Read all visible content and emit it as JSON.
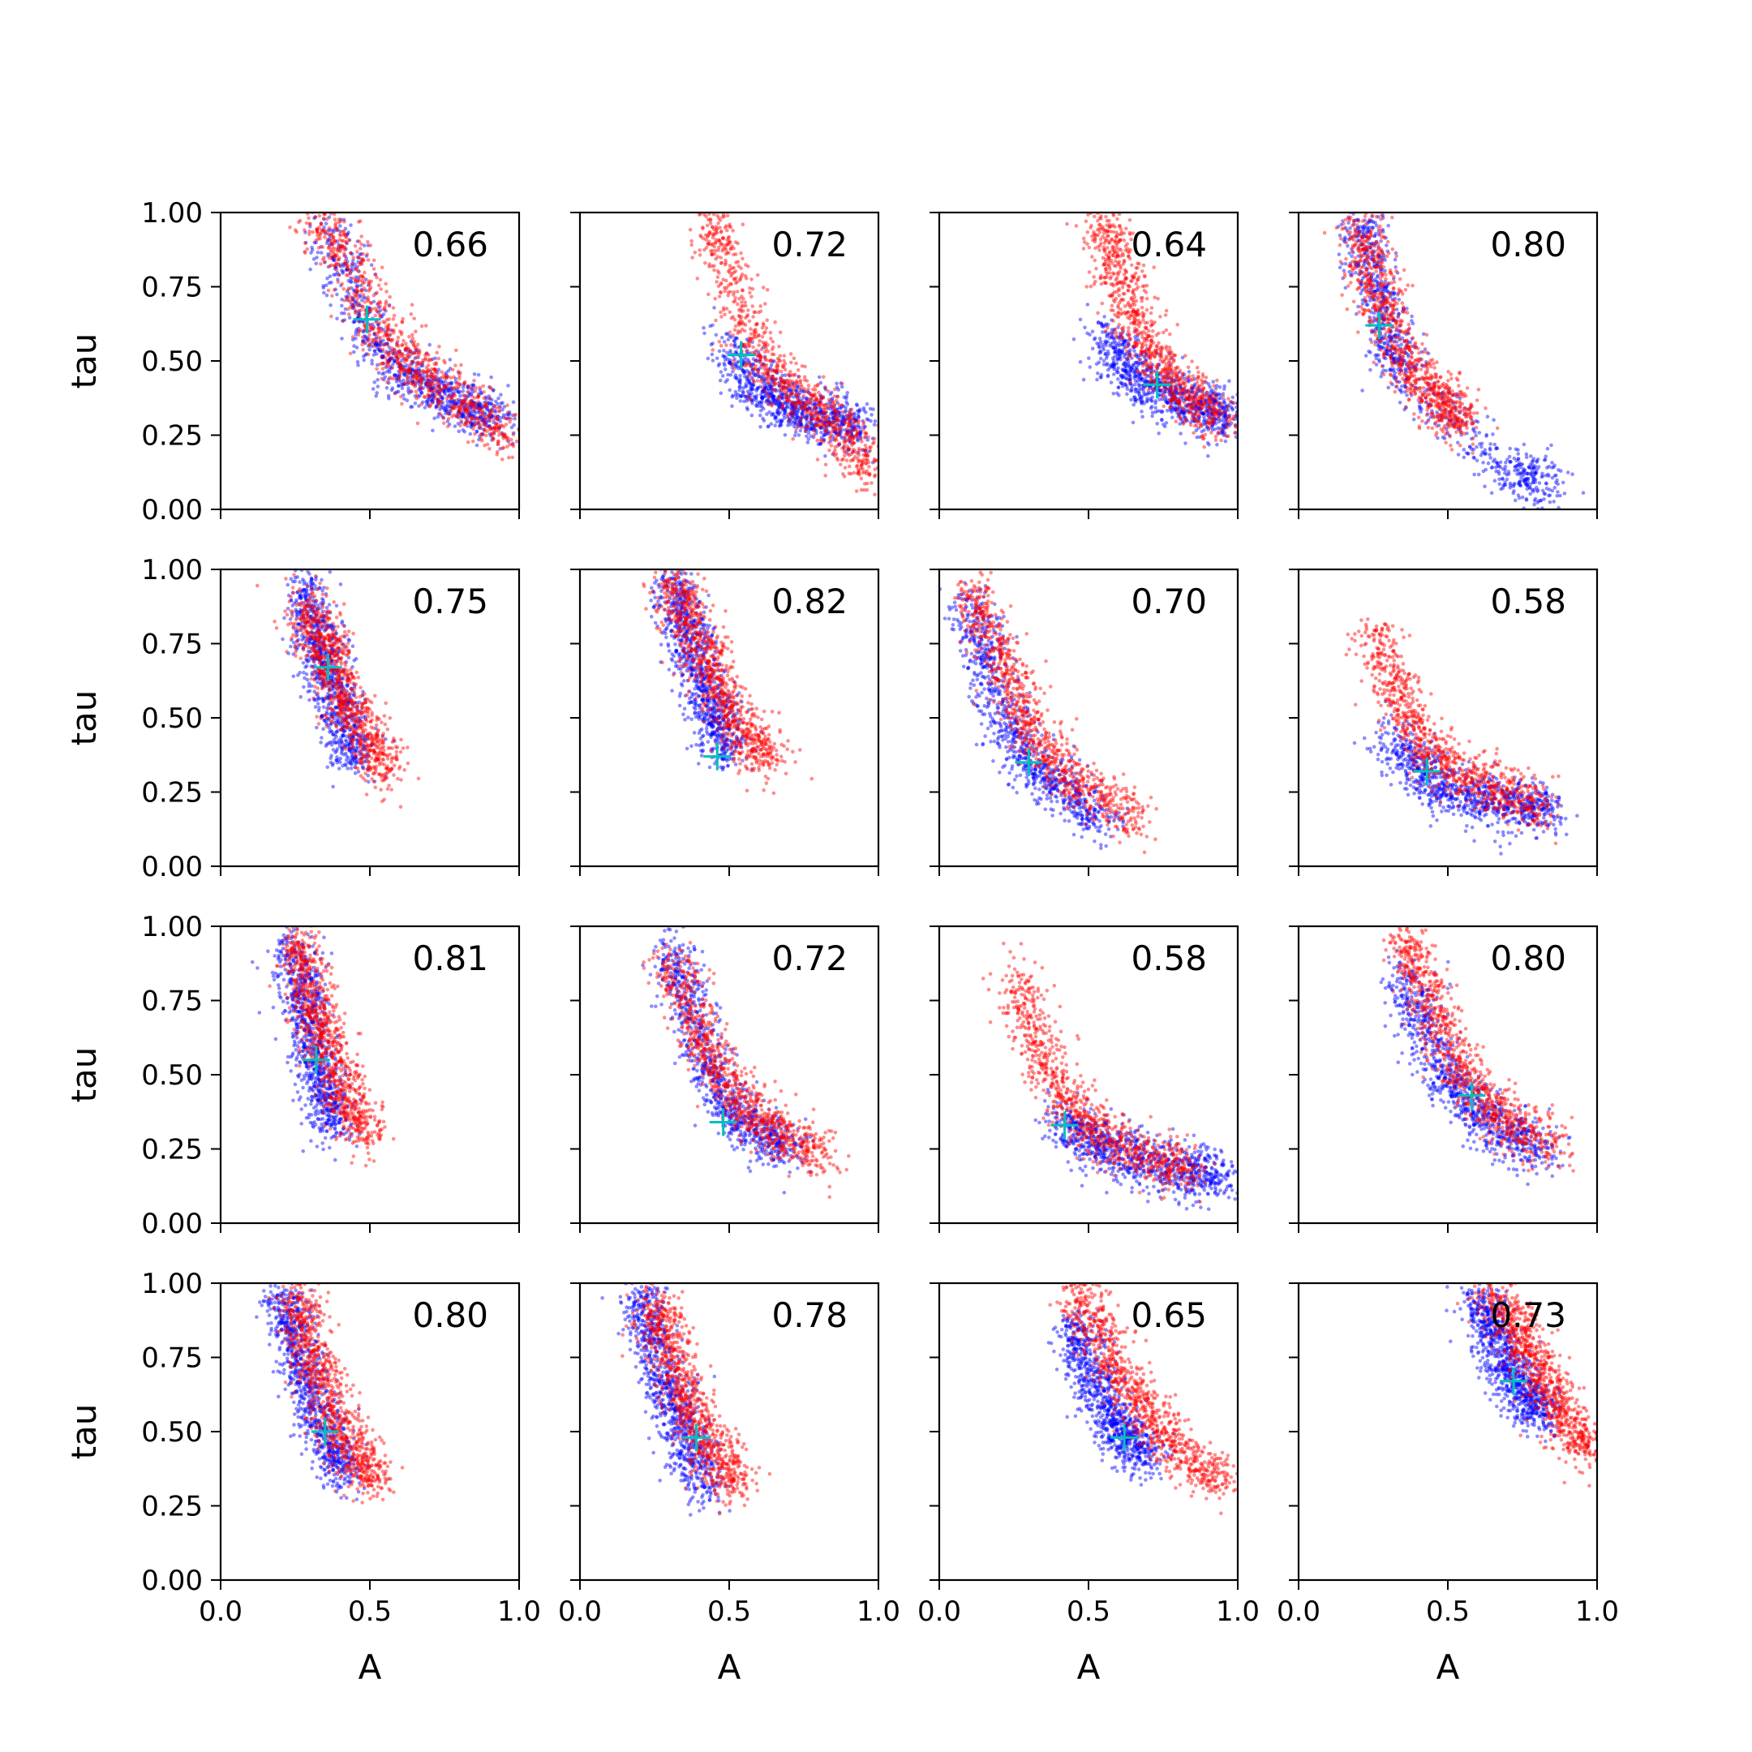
{
  "figure": {
    "xlabel": "A",
    "ylabel": "tau",
    "colors": {
      "series_a": "#0000ff",
      "series_b": "#ff0000",
      "marker": "#00bfbf",
      "axis": "#000000"
    }
  },
  "chart_data": [
    {
      "type": "scatter",
      "title": "",
      "xlabel": "",
      "ylabel": "tau",
      "xlim": [
        0,
        1
      ],
      "ylim": [
        0,
        1
      ],
      "xticks": [
        "0.0",
        "0.5",
        "1.0"
      ],
      "yticks": [
        "0.00",
        "0.25",
        "0.50",
        "0.75",
        "1.00"
      ],
      "annotation": "0.66",
      "marker": {
        "x": 0.49,
        "y": 0.64
      },
      "clouds": [
        {
          "series": "blue",
          "x": [
            0.35,
            0.45,
            0.55,
            0.65,
            0.75,
            0.85,
            0.93
          ],
          "y": [
            0.95,
            0.7,
            0.52,
            0.44,
            0.39,
            0.34,
            0.3
          ]
        },
        {
          "series": "red",
          "x": [
            0.32,
            0.42,
            0.52,
            0.62,
            0.72,
            0.85,
            0.97
          ],
          "y": [
            0.98,
            0.85,
            0.62,
            0.5,
            0.42,
            0.33,
            0.24
          ]
        }
      ]
    },
    {
      "type": "scatter",
      "title": "",
      "xlabel": "",
      "ylabel": "",
      "xlim": [
        0,
        1
      ],
      "ylim": [
        0,
        1
      ],
      "xticks": [
        "0.0",
        "0.5",
        "1.0"
      ],
      "yticks": [
        "0.00",
        "0.25",
        "0.50",
        "0.75",
        "1.00"
      ],
      "annotation": "0.72",
      "marker": {
        "x": 0.54,
        "y": 0.52
      },
      "clouds": [
        {
          "series": "blue",
          "x": [
            0.5,
            0.58,
            0.66,
            0.75,
            0.85,
            0.95
          ],
          "y": [
            0.55,
            0.42,
            0.36,
            0.33,
            0.3,
            0.27
          ]
        },
        {
          "series": "red",
          "x": [
            0.45,
            0.5,
            0.58,
            0.68,
            0.8,
            0.9,
            0.98
          ],
          "y": [
            0.98,
            0.8,
            0.55,
            0.42,
            0.34,
            0.25,
            0.12
          ]
        }
      ]
    },
    {
      "type": "scatter",
      "title": "",
      "xlabel": "",
      "ylabel": "",
      "xlim": [
        0,
        1
      ],
      "ylim": [
        0,
        1
      ],
      "xticks": [
        "0.0",
        "0.5",
        "1.0"
      ],
      "yticks": [
        "0.00",
        "0.25",
        "0.50",
        "0.75",
        "1.00"
      ],
      "annotation": "0.64",
      "marker": {
        "x": 0.73,
        "y": 0.42
      },
      "clouds": [
        {
          "series": "blue",
          "x": [
            0.55,
            0.62,
            0.7,
            0.8,
            0.9,
            0.98
          ],
          "y": [
            0.6,
            0.48,
            0.42,
            0.37,
            0.33,
            0.3
          ]
        },
        {
          "series": "red",
          "x": [
            0.55,
            0.6,
            0.66,
            0.74,
            0.84,
            0.95
          ],
          "y": [
            0.98,
            0.82,
            0.62,
            0.48,
            0.38,
            0.3
          ]
        }
      ]
    },
    {
      "type": "scatter",
      "title": "",
      "xlabel": "",
      "ylabel": "",
      "xlim": [
        0,
        1
      ],
      "ylim": [
        0,
        1
      ],
      "xticks": [
        "0.0",
        "0.5",
        "1.0"
      ],
      "yticks": [
        "0.00",
        "0.25",
        "0.50",
        "0.75",
        "1.00"
      ],
      "annotation": "0.80",
      "marker": {
        "x": 0.27,
        "y": 0.62
      },
      "clouds": [
        {
          "series": "blue",
          "x": [
            0.2,
            0.25,
            0.3,
            0.35,
            0.7,
            0.85
          ],
          "y": [
            0.98,
            0.8,
            0.6,
            0.45,
            0.12,
            0.08
          ]
        },
        {
          "series": "red",
          "x": [
            0.2,
            0.25,
            0.3,
            0.4,
            0.5,
            0.55
          ],
          "y": [
            0.95,
            0.78,
            0.6,
            0.45,
            0.35,
            0.28
          ]
        }
      ]
    },
    {
      "type": "scatter",
      "title": "",
      "xlabel": "",
      "ylabel": "tau",
      "xlim": [
        0,
        1
      ],
      "ylim": [
        0,
        1
      ],
      "xticks": [
        "0.0",
        "0.5",
        "1.0"
      ],
      "yticks": [
        "0.00",
        "0.25",
        "0.50",
        "0.75",
        "1.00"
      ],
      "annotation": "0.75",
      "marker": {
        "x": 0.36,
        "y": 0.67
      },
      "clouds": [
        {
          "series": "blue",
          "x": [
            0.28,
            0.32,
            0.36,
            0.4,
            0.46
          ],
          "y": [
            0.95,
            0.8,
            0.65,
            0.5,
            0.35
          ]
        },
        {
          "series": "red",
          "x": [
            0.28,
            0.34,
            0.4,
            0.48,
            0.56
          ],
          "y": [
            0.9,
            0.75,
            0.6,
            0.45,
            0.32
          ]
        }
      ]
    },
    {
      "type": "scatter",
      "title": "",
      "xlabel": "",
      "ylabel": "",
      "xlim": [
        0,
        1
      ],
      "ylim": [
        0,
        1
      ],
      "xticks": [
        "0.0",
        "0.5",
        "1.0"
      ],
      "yticks": [
        "0.00",
        "0.25",
        "0.50",
        "0.75",
        "1.00"
      ],
      "annotation": "0.82",
      "marker": {
        "x": 0.46,
        "y": 0.37
      },
      "clouds": [
        {
          "series": "blue",
          "x": [
            0.3,
            0.35,
            0.4,
            0.45,
            0.5
          ],
          "y": [
            0.98,
            0.82,
            0.66,
            0.5,
            0.38
          ]
        },
        {
          "series": "red",
          "x": [
            0.3,
            0.38,
            0.45,
            0.55,
            0.65
          ],
          "y": [
            0.98,
            0.8,
            0.62,
            0.45,
            0.35
          ]
        }
      ]
    },
    {
      "type": "scatter",
      "title": "",
      "xlabel": "",
      "ylabel": "",
      "xlim": [
        0,
        1
      ],
      "ylim": [
        0,
        1
      ],
      "xticks": [
        "0.0",
        "0.5",
        "1.0"
      ],
      "yticks": [
        "0.00",
        "0.25",
        "0.50",
        "0.75",
        "1.00"
      ],
      "annotation": "0.70",
      "marker": {
        "x": 0.3,
        "y": 0.35
      },
      "clouds": [
        {
          "series": "blue",
          "x": [
            0.1,
            0.15,
            0.22,
            0.3,
            0.42,
            0.55
          ],
          "y": [
            0.9,
            0.7,
            0.5,
            0.35,
            0.25,
            0.15
          ]
        },
        {
          "series": "red",
          "x": [
            0.1,
            0.18,
            0.26,
            0.36,
            0.5,
            0.68
          ],
          "y": [
            0.95,
            0.75,
            0.55,
            0.38,
            0.25,
            0.15
          ]
        }
      ]
    },
    {
      "type": "scatter",
      "title": "",
      "xlabel": "",
      "ylabel": "",
      "xlim": [
        0,
        1
      ],
      "ylim": [
        0,
        1
      ],
      "xticks": [
        "0.0",
        "0.5",
        "1.0"
      ],
      "yticks": [
        "0.00",
        "0.25",
        "0.50",
        "0.75",
        "1.00"
      ],
      "annotation": "0.58",
      "marker": {
        "x": 0.43,
        "y": 0.32
      },
      "clouds": [
        {
          "series": "blue",
          "x": [
            0.3,
            0.4,
            0.5,
            0.62,
            0.75,
            0.85
          ],
          "y": [
            0.45,
            0.32,
            0.25,
            0.22,
            0.2,
            0.18
          ]
        },
        {
          "series": "red",
          "x": [
            0.25,
            0.32,
            0.42,
            0.55,
            0.7,
            0.85
          ],
          "y": [
            0.8,
            0.6,
            0.42,
            0.3,
            0.24,
            0.2
          ]
        }
      ]
    },
    {
      "type": "scatter",
      "title": "",
      "xlabel": "",
      "ylabel": "tau",
      "xlim": [
        0,
        1
      ],
      "ylim": [
        0,
        1
      ],
      "xticks": [
        "0.0",
        "0.5",
        "1.0"
      ],
      "yticks": [
        "0.00",
        "0.25",
        "0.50",
        "0.75",
        "1.00"
      ],
      "annotation": "0.81",
      "marker": {
        "x": 0.32,
        "y": 0.55
      },
      "clouds": [
        {
          "series": "blue",
          "x": [
            0.24,
            0.27,
            0.3,
            0.34,
            0.38
          ],
          "y": [
            0.95,
            0.78,
            0.6,
            0.45,
            0.32
          ]
        },
        {
          "series": "red",
          "x": [
            0.26,
            0.3,
            0.35,
            0.42,
            0.5
          ],
          "y": [
            0.95,
            0.78,
            0.6,
            0.42,
            0.3
          ]
        }
      ]
    },
    {
      "type": "scatter",
      "title": "",
      "xlabel": "",
      "ylabel": "",
      "xlim": [
        0,
        1
      ],
      "ylim": [
        0,
        1
      ],
      "xticks": [
        "0.0",
        "0.5",
        "1.0"
      ],
      "yticks": [
        "0.00",
        "0.25",
        "0.50",
        "0.75",
        "1.00"
      ],
      "annotation": "0.72",
      "marker": {
        "x": 0.48,
        "y": 0.34
      },
      "clouds": [
        {
          "series": "blue",
          "x": [
            0.3,
            0.36,
            0.42,
            0.5,
            0.6,
            0.7
          ],
          "y": [
            0.95,
            0.75,
            0.55,
            0.38,
            0.3,
            0.25
          ]
        },
        {
          "series": "red",
          "x": [
            0.3,
            0.38,
            0.46,
            0.56,
            0.68,
            0.82
          ],
          "y": [
            0.9,
            0.7,
            0.52,
            0.38,
            0.3,
            0.22
          ]
        }
      ]
    },
    {
      "type": "scatter",
      "title": "",
      "xlabel": "",
      "ylabel": "",
      "xlim": [
        0,
        1
      ],
      "ylim": [
        0,
        1
      ],
      "xticks": [
        "0.0",
        "0.5",
        "1.0"
      ],
      "yticks": [
        "0.00",
        "0.25",
        "0.50",
        "0.75",
        "1.00"
      ],
      "annotation": "0.58",
      "marker": {
        "x": 0.42,
        "y": 0.33
      },
      "clouds": [
        {
          "series": "blue",
          "x": [
            0.4,
            0.5,
            0.6,
            0.72,
            0.85,
            0.95
          ],
          "y": [
            0.35,
            0.28,
            0.24,
            0.2,
            0.17,
            0.14
          ]
        },
        {
          "series": "red",
          "x": [
            0.25,
            0.32,
            0.42,
            0.55,
            0.7,
            0.85
          ],
          "y": [
            0.85,
            0.62,
            0.42,
            0.3,
            0.22,
            0.18
          ]
        }
      ]
    },
    {
      "type": "scatter",
      "title": "",
      "xlabel": "",
      "ylabel": "",
      "xlim": [
        0,
        1
      ],
      "ylim": [
        0,
        1
      ],
      "xticks": [
        "0.0",
        "0.5",
        "1.0"
      ],
      "yticks": [
        "0.00",
        "0.25",
        "0.50",
        "0.75",
        "1.00"
      ],
      "annotation": "0.80",
      "marker": {
        "x": 0.58,
        "y": 0.43
      },
      "clouds": [
        {
          "series": "blue",
          "x": [
            0.35,
            0.42,
            0.5,
            0.6,
            0.7,
            0.82
          ],
          "y": [
            0.85,
            0.65,
            0.48,
            0.38,
            0.3,
            0.25
          ]
        },
        {
          "series": "red",
          "x": [
            0.35,
            0.42,
            0.5,
            0.6,
            0.72,
            0.88
          ],
          "y": [
            0.98,
            0.8,
            0.6,
            0.44,
            0.33,
            0.24
          ]
        }
      ]
    },
    {
      "type": "scatter",
      "title": "",
      "xlabel": "A",
      "ylabel": "tau",
      "xlim": [
        0,
        1
      ],
      "ylim": [
        0,
        1
      ],
      "xticks": [
        "0.0",
        "0.5",
        "1.0"
      ],
      "yticks": [
        "0.00",
        "0.25",
        "0.50",
        "0.75",
        "1.00"
      ],
      "annotation": "0.80",
      "marker": {
        "x": 0.35,
        "y": 0.5
      },
      "clouds": [
        {
          "series": "blue",
          "x": [
            0.2,
            0.25,
            0.3,
            0.36,
            0.42
          ],
          "y": [
            0.98,
            0.8,
            0.62,
            0.46,
            0.35
          ]
        },
        {
          "series": "red",
          "x": [
            0.25,
            0.3,
            0.36,
            0.44,
            0.52
          ],
          "y": [
            0.95,
            0.78,
            0.6,
            0.44,
            0.32
          ]
        }
      ]
    },
    {
      "type": "scatter",
      "title": "",
      "xlabel": "A",
      "ylabel": "",
      "xlim": [
        0,
        1
      ],
      "ylim": [
        0,
        1
      ],
      "xticks": [
        "0.0",
        "0.5",
        "1.0"
      ],
      "yticks": [
        "0.00",
        "0.25",
        "0.50",
        "0.75",
        "1.00"
      ],
      "annotation": "0.78",
      "marker": {
        "x": 0.39,
        "y": 0.48
      },
      "clouds": [
        {
          "series": "blue",
          "x": [
            0.2,
            0.25,
            0.3,
            0.36,
            0.42
          ],
          "y": [
            0.98,
            0.8,
            0.62,
            0.46,
            0.32
          ]
        },
        {
          "series": "red",
          "x": [
            0.24,
            0.3,
            0.36,
            0.44,
            0.52
          ],
          "y": [
            0.95,
            0.78,
            0.6,
            0.44,
            0.32
          ]
        }
      ]
    },
    {
      "type": "scatter",
      "title": "",
      "xlabel": "A",
      "ylabel": "",
      "xlim": [
        0,
        1
      ],
      "ylim": [
        0,
        1
      ],
      "xticks": [
        "0.0",
        "0.5",
        "1.0"
      ],
      "yticks": [
        "0.00",
        "0.25",
        "0.50",
        "0.75",
        "1.00"
      ],
      "annotation": "0.65",
      "marker": {
        "x": 0.62,
        "y": 0.48
      },
      "clouds": [
        {
          "series": "blue",
          "x": [
            0.45,
            0.5,
            0.56,
            0.62,
            0.7
          ],
          "y": [
            0.85,
            0.72,
            0.58,
            0.48,
            0.42
          ]
        },
        {
          "series": "red",
          "x": [
            0.45,
            0.52,
            0.6,
            0.7,
            0.82,
            0.95
          ],
          "y": [
            0.98,
            0.85,
            0.7,
            0.55,
            0.42,
            0.32
          ]
        }
      ]
    },
    {
      "type": "scatter",
      "title": "",
      "xlabel": "A",
      "ylabel": "",
      "xlim": [
        0,
        1
      ],
      "ylim": [
        0,
        1
      ],
      "xticks": [
        "0.0",
        "0.5",
        "1.0"
      ],
      "yticks": [
        "0.00",
        "0.25",
        "0.50",
        "0.75",
        "1.00"
      ],
      "annotation": "0.73",
      "marker": {
        "x": 0.72,
        "y": 0.67
      },
      "clouds": [
        {
          "series": "blue",
          "x": [
            0.6,
            0.65,
            0.7,
            0.76,
            0.82
          ],
          "y": [
            0.95,
            0.85,
            0.72,
            0.62,
            0.55
          ]
        },
        {
          "series": "red",
          "x": [
            0.65,
            0.72,
            0.78,
            0.85,
            0.92,
            0.98
          ],
          "y": [
            0.98,
            0.88,
            0.75,
            0.62,
            0.5,
            0.42
          ]
        }
      ]
    }
  ]
}
